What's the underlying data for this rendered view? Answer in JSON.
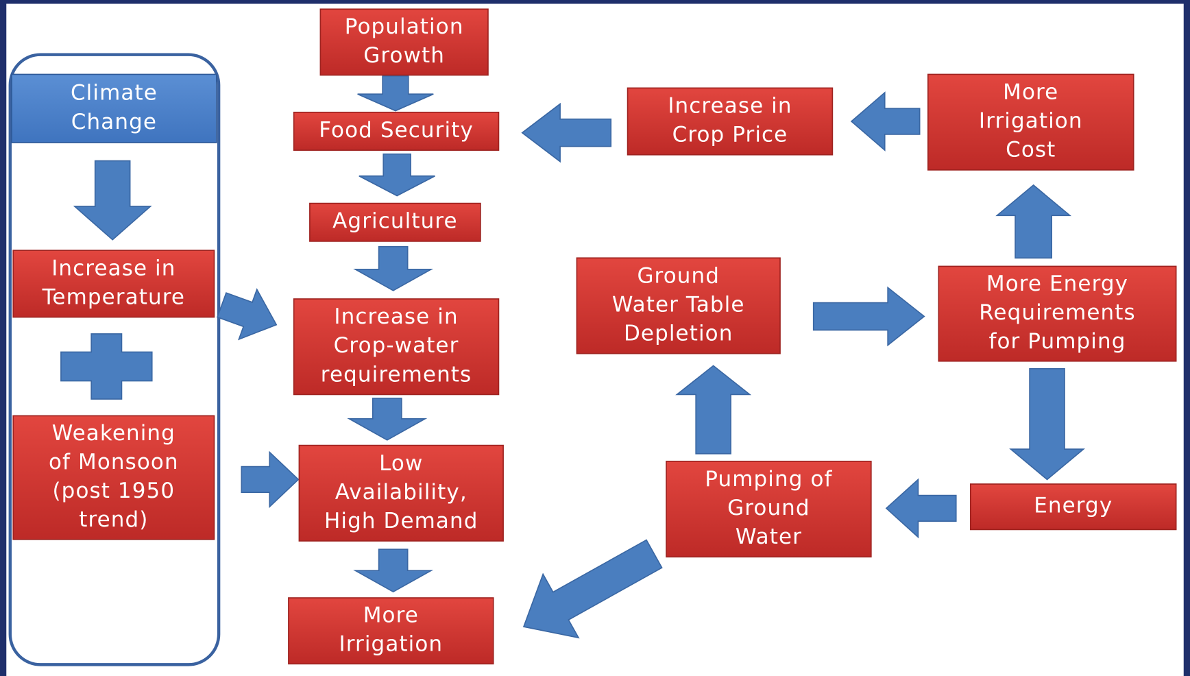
{
  "nodes": [
    {
      "lines": [
        "Climate",
        "Change"
      ]
    },
    {
      "lines": [
        "Increase in",
        "Temperature"
      ]
    },
    {
      "lines": [
        "Weakening",
        "of Monsoon",
        "(post 1950",
        "trend)"
      ]
    },
    {
      "lines": [
        "Population",
        "Growth"
      ]
    },
    {
      "lines": [
        "Food Security"
      ]
    },
    {
      "lines": [
        "Agriculture"
      ]
    },
    {
      "lines": [
        "Increase in",
        "Crop-water",
        "requirements"
      ]
    },
    {
      "lines": [
        "Low",
        "Availability,",
        "High Demand"
      ]
    },
    {
      "lines": [
        "More",
        "Irrigation"
      ]
    },
    {
      "lines": [
        "Increase in",
        "Crop Price"
      ]
    },
    {
      "lines": [
        "More",
        "Irrigation",
        "Cost"
      ]
    },
    {
      "lines": [
        "Ground",
        "Water Table",
        "Depletion"
      ]
    },
    {
      "lines": [
        "More Energy",
        "Requirements",
        "for Pumping"
      ]
    },
    {
      "lines": [
        "Pumping of",
        "Ground",
        "Water"
      ]
    },
    {
      "lines": [
        "Energy"
      ]
    }
  ]
}
